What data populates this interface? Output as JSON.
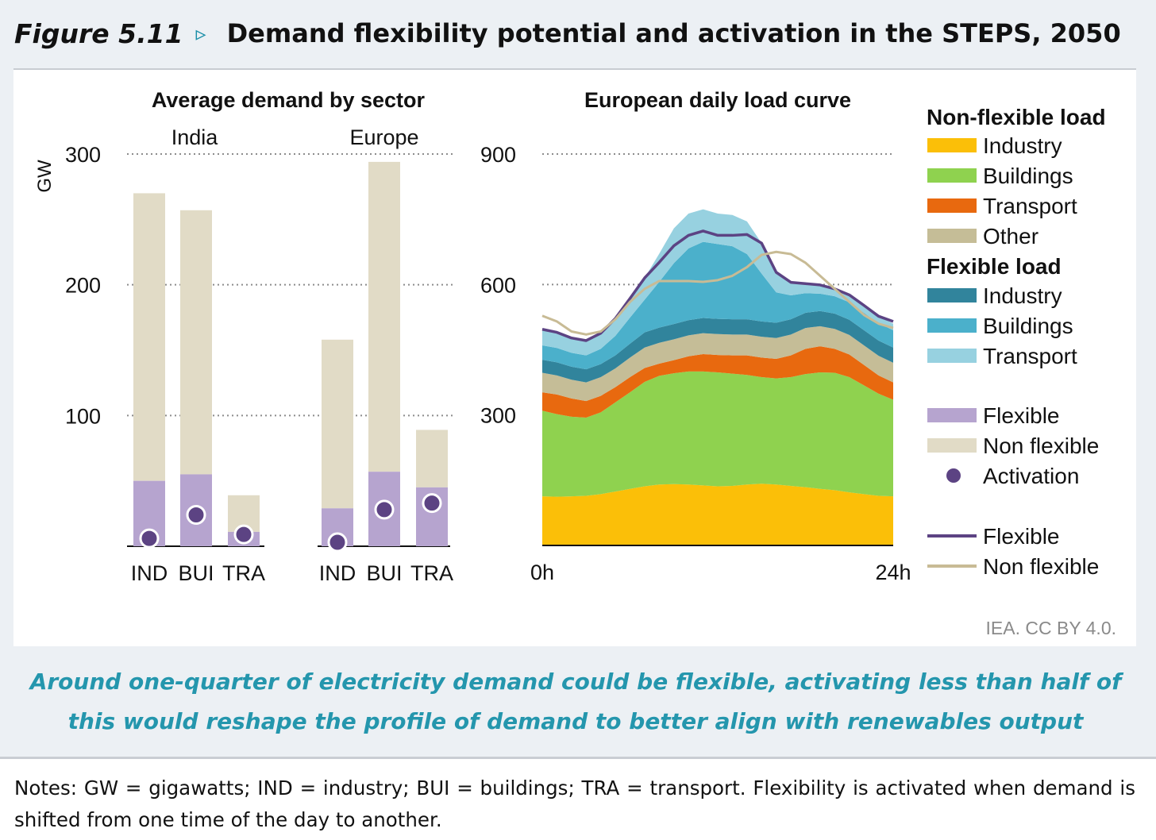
{
  "figure": {
    "label": "Figure 5.11",
    "arrow": "▹",
    "title": "Demand flexibility potential and activation in the STEPS, 2050",
    "caption": "Around one-quarter of electricity demand could be flexible, activating less than half of this would reshape the profile of demand to better align with renewables output",
    "credit": "IEA. CC BY 4.0.",
    "notes": "Notes: GW = gigawatts; IND = industry; BUI = buildings; TRA = transport. Flexibility is activated when demand is shifted from one time of the day to another."
  },
  "colors": {
    "industry_nonflex": "#fbbf08",
    "buildings_nonflex": "#8fd24f",
    "transport_nonflex": "#e8690f",
    "other_nonflex": "#c5bd97",
    "industry_flex": "#31849c",
    "buildings_flex": "#4bb0cb",
    "transport_flex": "#97d1e0",
    "flexible_bar": "#b6a4cf",
    "nonflexible_bar": "#e1dbc6",
    "activation": "#5c4383",
    "flexible_line": "#5c4383",
    "nonflexible_line": "#c8bb95"
  },
  "chart_data": [
    {
      "type": "bar",
      "title": "Average demand by sector",
      "ylabel": "GW",
      "ylim": [
        0,
        300
      ],
      "yticks": [
        100,
        200,
        300
      ],
      "grid": true,
      "groups": [
        {
          "name": "India",
          "categories": [
            "IND",
            "BUI",
            "TRA"
          ],
          "series": [
            {
              "name": "Flexible",
              "values": [
                50,
                55,
                11
              ]
            },
            {
              "name": "Non flexible",
              "values": [
                220,
                202,
                28
              ]
            }
          ],
          "activation": [
            6,
            24,
            9
          ]
        },
        {
          "name": "Europe",
          "categories": [
            "IND",
            "BUI",
            "TRA"
          ],
          "series": [
            {
              "name": "Flexible",
              "values": [
                29,
                57,
                45
              ]
            },
            {
              "name": "Non flexible",
              "values": [
                129,
                237,
                44
              ]
            }
          ],
          "activation": [
            3,
            28,
            33
          ]
        }
      ]
    },
    {
      "type": "area",
      "title": "European daily load curve",
      "ylim": [
        0,
        900
      ],
      "yticks": [
        300,
        600,
        900
      ],
      "xlabels": [
        "0h",
        "24h"
      ],
      "grid": true,
      "x": [
        0,
        1,
        2,
        3,
        4,
        5,
        6,
        7,
        8,
        9,
        10,
        11,
        12,
        13,
        14,
        15,
        16,
        17,
        18,
        19,
        20,
        21,
        22,
        23,
        24
      ],
      "series": [
        {
          "name": "Industry",
          "group": "Non-flexible load",
          "values": [
            113,
            112,
            113,
            114,
            118,
            124,
            130,
            136,
            140,
            141,
            140,
            138,
            136,
            137,
            140,
            142,
            140,
            137,
            134,
            130,
            127,
            122,
            118,
            114,
            113
          ]
        },
        {
          "name": "Buildings",
          "group": "Non-flexible load",
          "values": [
            197,
            190,
            183,
            180,
            188,
            205,
            222,
            240,
            250,
            255,
            260,
            262,
            262,
            258,
            252,
            245,
            244,
            250,
            260,
            268,
            270,
            265,
            250,
            235,
            222
          ]
        },
        {
          "name": "Transport",
          "group": "Non-flexible load",
          "values": [
            42,
            45,
            42,
            38,
            38,
            35,
            35,
            32,
            28,
            30,
            35,
            40,
            40,
            42,
            45,
            45,
            45,
            50,
            58,
            60,
            55,
            52,
            47,
            42,
            40
          ]
        },
        {
          "name": "Other",
          "group": "Non-flexible load",
          "values": [
            45,
            44,
            43,
            43,
            43,
            43,
            45,
            47,
            48,
            48,
            48,
            48,
            48,
            48,
            48,
            48,
            48,
            48,
            48,
            46,
            46,
            45,
            45,
            45,
            45
          ]
        },
        {
          "name": "Industry",
          "group": "Flexible load",
          "values": [
            30,
            30,
            30,
            30,
            30,
            30,
            32,
            35,
            35,
            35,
            35,
            35,
            35,
            35,
            35,
            35,
            35,
            35,
            35,
            35,
            35,
            35,
            35,
            35,
            35
          ]
        },
        {
          "name": "Buildings",
          "group": "Flexible load",
          "values": [
            33,
            33,
            32,
            32,
            35,
            45,
            60,
            75,
            105,
            140,
            165,
            175,
            172,
            168,
            150,
            110,
            70,
            55,
            45,
            40,
            40,
            40,
            40,
            40,
            40
          ]
        },
        {
          "name": "Transport",
          "group": "Flexible load",
          "values": [
            37,
            36,
            34,
            34,
            36,
            40,
            44,
            50,
            65,
            80,
            80,
            75,
            70,
            72,
            75,
            70,
            45,
            30,
            22,
            20,
            17,
            17,
            17,
            16,
            15
          ]
        }
      ],
      "lines": [
        {
          "name": "Flexible",
          "values": [
            497,
            490,
            477,
            471,
            488,
            522,
            568,
            615,
            651,
            689,
            713,
            723,
            713,
            713,
            715,
            695,
            628,
            605,
            602,
            599,
            590,
            576,
            552,
            527,
            515
          ]
        },
        {
          "name": "Non flexible",
          "values": [
            528,
            515,
            492,
            485,
            492,
            520,
            560,
            590,
            608,
            608,
            608,
            606,
            610,
            620,
            640,
            668,
            675,
            670,
            650,
            620,
            590,
            560,
            530,
            510,
            500
          ]
        }
      ]
    }
  ],
  "legend": {
    "nonflex_heading": "Non-flexible load",
    "nonflex_items": [
      {
        "label": "Industry",
        "color": "#fbbf08"
      },
      {
        "label": "Buildings",
        "color": "#8fd24f"
      },
      {
        "label": "Transport",
        "color": "#e8690f"
      },
      {
        "label": "Other",
        "color": "#c5bd97"
      }
    ],
    "flex_heading": "Flexible load",
    "flex_items": [
      {
        "label": "Industry",
        "color": "#31849c"
      },
      {
        "label": "Buildings",
        "color": "#4bb0cb"
      },
      {
        "label": "Transport",
        "color": "#97d1e0"
      }
    ],
    "bar_items": [
      {
        "label": "Flexible",
        "color": "#b6a4cf"
      },
      {
        "label": "Non flexible",
        "color": "#e1dbc6"
      }
    ],
    "activation_label": "Activation",
    "line_items": [
      {
        "label": "Flexible",
        "color": "#5c4383"
      },
      {
        "label": "Non flexible",
        "color": "#c8bb95"
      }
    ]
  }
}
